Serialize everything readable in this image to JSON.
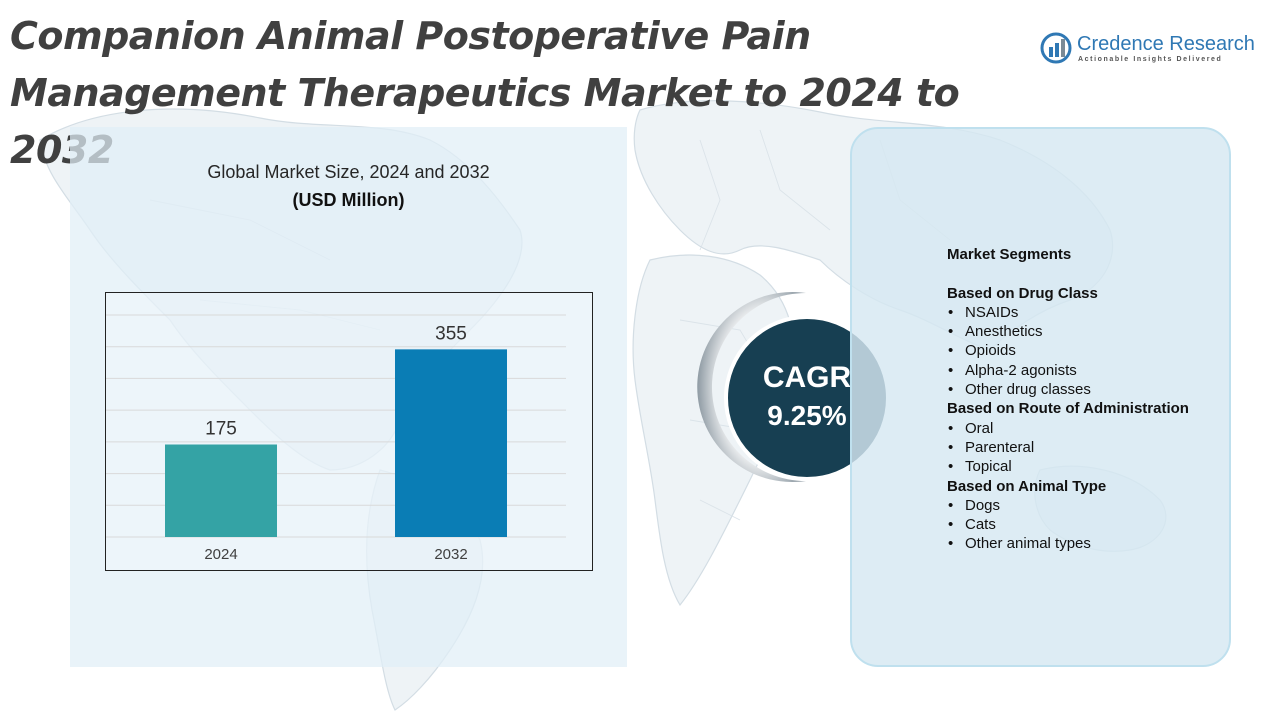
{
  "title": "Companion Animal Postoperative Pain Management Therapeutics Market to 2024 to 2032",
  "logo": {
    "name": "Credence Research",
    "tagline": "Actionable Insights Delivered",
    "mark_icon": "credence-bars-icon"
  },
  "chart_panel": {
    "subtitle": "Global Market Size, 2024 and 2032",
    "unit": "(USD Million)"
  },
  "chart_data": {
    "type": "bar",
    "categories": [
      "2024",
      "2032"
    ],
    "values": [
      175,
      355
    ],
    "data_labels": [
      "175",
      "355"
    ],
    "title": "Global Market Size, 2024 and 2032",
    "ylabel": "(USD Million)",
    "xlabel": "",
    "ylim": [
      0,
      420
    ],
    "grid": true,
    "colors": [
      "#34a3a5",
      "#0a7db5"
    ]
  },
  "cagr": {
    "label": "CAGR",
    "value": "9.25%"
  },
  "segments": {
    "title": "Market Segments",
    "groups": [
      {
        "heading": "Based on Drug Class",
        "items": [
          "NSAIDs",
          "Anesthetics",
          "Opioids",
          "Alpha-2 agonists",
          "Other drug classes"
        ]
      },
      {
        "heading": "Based on Route of Administration",
        "items": [
          "Oral",
          "Parenteral",
          "Topical"
        ]
      },
      {
        "heading": "Based on Animal Type",
        "items": [
          "Dogs",
          "Cats",
          "Other animal types"
        ]
      }
    ]
  },
  "colors": {
    "title_text": "#404040",
    "cagr_circle": "#173f52",
    "brand": "#2f78b4",
    "panel_bg": "#e1eef7"
  }
}
